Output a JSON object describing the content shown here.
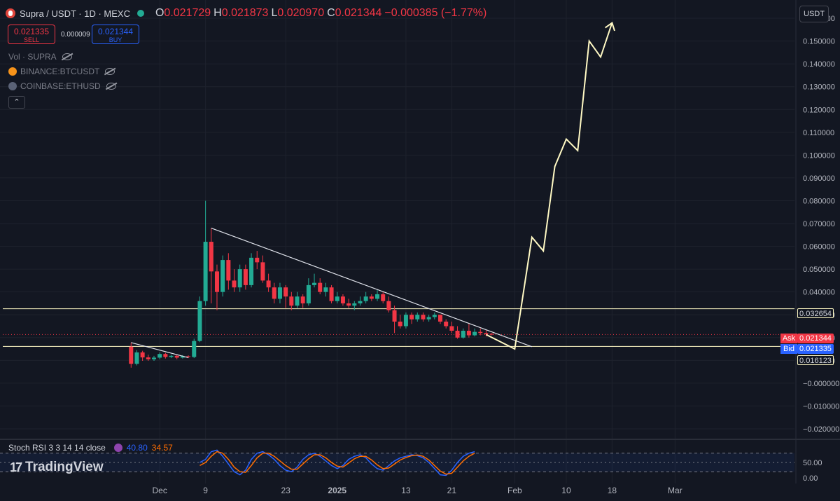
{
  "header": {
    "symbol": "Supra / USDT · 1D · MEXC",
    "open_label": "O",
    "open": "0.021729",
    "high_label": "H",
    "high": "0.021873",
    "low_label": "L",
    "low": "0.020970",
    "close_label": "C",
    "close": "0.021344",
    "change": "−0.000385 (−1.77%)"
  },
  "trade": {
    "sell_price": "0.021335",
    "sell_label": "SELL",
    "spread": "0.000009",
    "buy_price": "0.021344",
    "buy_label": "BUY"
  },
  "indicators": [
    {
      "label": "Vol · SUPRA"
    },
    {
      "label": "BINANCE:BTCUSDT"
    },
    {
      "label": "COINBASE:ETHUSD"
    }
  ],
  "collapse_glyph": "⌃",
  "currency_button": "USDT",
  "price_tags": {
    "upper_level": "0.032654",
    "ask_label": "Ask",
    "ask": "0.021344",
    "bid_label": "Bid",
    "bid": "0.021335",
    "lower_level": "0.016123"
  },
  "rsi": {
    "name": "Stoch RSI 3 3 14 14 close",
    "k": "40.80",
    "d": "34.57",
    "axis_ticks": [
      "50.00",
      "0.00"
    ]
  },
  "logo_text": "TradingView",
  "colors": {
    "background": "#131722",
    "up": "#22ab94",
    "down": "#f23645",
    "projection": "#fff9c4",
    "rsi_k": "#2962ff",
    "rsi_d": "#ff6d00"
  },
  "chart_data": {
    "type": "candlestick",
    "y_axis_ticks": [
      "0.160000",
      "0.150000",
      "0.140000",
      "0.130000",
      "0.120000",
      "0.110000",
      "0.100000",
      "0.090000",
      "0.080000",
      "0.070000",
      "0.060000",
      "0.050000",
      "0.040000",
      "0.030000",
      "0.020000",
      "0.010000",
      "−0.000000",
      "−0.010000",
      "−0.020000"
    ],
    "y_tick_values": [
      0.16,
      0.15,
      0.14,
      0.13,
      0.12,
      0.11,
      0.1,
      0.09,
      0.08,
      0.07,
      0.06,
      0.05,
      0.04,
      0.03,
      0.02,
      0.01,
      0.0,
      -0.01,
      -0.02
    ],
    "ylim": [
      -0.024,
      0.168
    ],
    "x_axis_ticks": [
      {
        "label": "Dec",
        "day": 1
      },
      {
        "label": "9",
        "day": 9
      },
      {
        "label": "23",
        "day": 23
      },
      {
        "label": "2025",
        "day": 32
      },
      {
        "label": "13",
        "day": 44
      },
      {
        "label": "21",
        "day": 52
      },
      {
        "label": "Feb",
        "day": 63
      },
      {
        "label": "10",
        "day": 72
      },
      {
        "label": "18",
        "day": 80
      },
      {
        "label": "Mar",
        "day": 91
      }
    ],
    "horizontal_levels": [
      0.032654,
      0.016123
    ],
    "current_price": 0.021344,
    "candles": [
      [
        -4,
        0.016,
        0.0085,
        0.0068,
        0.0178
      ],
      [
        -3,
        0.0085,
        0.0135,
        0.0078,
        0.0145
      ],
      [
        -2,
        0.0135,
        0.0113,
        0.0098,
        0.0142
      ],
      [
        -1,
        0.0113,
        0.0105,
        0.0098,
        0.0125
      ],
      [
        0,
        0.0105,
        0.0112,
        0.0098,
        0.012
      ],
      [
        1,
        0.0112,
        0.0128,
        0.0105,
        0.0135
      ],
      [
        2,
        0.0128,
        0.0115,
        0.0108,
        0.0133
      ],
      [
        3,
        0.0115,
        0.012,
        0.011,
        0.0125
      ],
      [
        4,
        0.012,
        0.0112,
        0.0105,
        0.0125
      ],
      [
        5,
        0.0112,
        0.0118,
        0.0108,
        0.0123
      ],
      [
        6,
        0.0118,
        0.0115,
        0.011,
        0.0122
      ],
      [
        7,
        0.0115,
        0.0185,
        0.011,
        0.0195
      ],
      [
        8,
        0.0185,
        0.036,
        0.018,
        0.038
      ],
      [
        9,
        0.036,
        0.062,
        0.034,
        0.08
      ],
      [
        10,
        0.062,
        0.049,
        0.035,
        0.068
      ],
      [
        11,
        0.049,
        0.04,
        0.032,
        0.052
      ],
      [
        12,
        0.04,
        0.054,
        0.038,
        0.056
      ],
      [
        13,
        0.054,
        0.045,
        0.041,
        0.057
      ],
      [
        14,
        0.045,
        0.042,
        0.04,
        0.05
      ],
      [
        15,
        0.042,
        0.05,
        0.04,
        0.052
      ],
      [
        16,
        0.05,
        0.043,
        0.041,
        0.052
      ],
      [
        17,
        0.043,
        0.055,
        0.042,
        0.057
      ],
      [
        18,
        0.055,
        0.053,
        0.05,
        0.058
      ],
      [
        19,
        0.053,
        0.045,
        0.044,
        0.056
      ],
      [
        20,
        0.045,
        0.042,
        0.04,
        0.048
      ],
      [
        21,
        0.042,
        0.037,
        0.035,
        0.044
      ],
      [
        22,
        0.037,
        0.042,
        0.035,
        0.044
      ],
      [
        23,
        0.042,
        0.038,
        0.033,
        0.043
      ],
      [
        24,
        0.038,
        0.034,
        0.032,
        0.04
      ],
      [
        25,
        0.034,
        0.038,
        0.033,
        0.04
      ],
      [
        26,
        0.038,
        0.035,
        0.033,
        0.039
      ],
      [
        27,
        0.035,
        0.043,
        0.034,
        0.046
      ],
      [
        28,
        0.043,
        0.044,
        0.042,
        0.048
      ],
      [
        29,
        0.044,
        0.04,
        0.039,
        0.046
      ],
      [
        30,
        0.04,
        0.042,
        0.038,
        0.044
      ],
      [
        31,
        0.042,
        0.036,
        0.035,
        0.043
      ],
      [
        32,
        0.036,
        0.038,
        0.035,
        0.04
      ],
      [
        33,
        0.038,
        0.035,
        0.034,
        0.039
      ],
      [
        34,
        0.035,
        0.034,
        0.033,
        0.037
      ],
      [
        35,
        0.034,
        0.035,
        0.032,
        0.036
      ],
      [
        36,
        0.035,
        0.036,
        0.034,
        0.038
      ],
      [
        37,
        0.036,
        0.038,
        0.035,
        0.04
      ],
      [
        38,
        0.038,
        0.037,
        0.036,
        0.039
      ],
      [
        39,
        0.037,
        0.039,
        0.036,
        0.041
      ],
      [
        40,
        0.039,
        0.036,
        0.035,
        0.04
      ],
      [
        41,
        0.036,
        0.032,
        0.031,
        0.038
      ],
      [
        42,
        0.032,
        0.027,
        0.022,
        0.034
      ],
      [
        43,
        0.027,
        0.025,
        0.024,
        0.03
      ],
      [
        44,
        0.025,
        0.03,
        0.024,
        0.031
      ],
      [
        45,
        0.03,
        0.028,
        0.026,
        0.031
      ],
      [
        46,
        0.028,
        0.03,
        0.027,
        0.031
      ],
      [
        47,
        0.03,
        0.028,
        0.027,
        0.031
      ],
      [
        48,
        0.028,
        0.029,
        0.027,
        0.03
      ],
      [
        49,
        0.029,
        0.03,
        0.028,
        0.031
      ],
      [
        50,
        0.03,
        0.027,
        0.026,
        0.03
      ],
      [
        51,
        0.027,
        0.025,
        0.024,
        0.028
      ],
      [
        52,
        0.025,
        0.023,
        0.022,
        0.027
      ],
      [
        53,
        0.023,
        0.02,
        0.0195,
        0.025
      ],
      [
        54,
        0.02,
        0.023,
        0.0195,
        0.024
      ],
      [
        55,
        0.023,
        0.021,
        0.02,
        0.026
      ],
      [
        56,
        0.021,
        0.0225,
        0.0205,
        0.024
      ],
      [
        57,
        0.0225,
        0.022,
        0.021,
        0.024
      ],
      [
        58,
        0.022,
        0.0215,
        0.0205,
        0.0235
      ],
      [
        59,
        0.0217,
        0.0213,
        0.021,
        0.0219
      ]
    ],
    "trendlines": [
      {
        "from": [
          -4,
          0.0178
        ],
        "to": [
          6,
          0.0112
        ]
      },
      {
        "from": [
          10,
          0.068
        ],
        "to": [
          66,
          0.016
        ]
      }
    ],
    "projection_path": [
      [
        58,
        0.0213
      ],
      [
        63,
        0.015
      ],
      [
        66,
        0.064
      ],
      [
        68,
        0.058
      ],
      [
        70,
        0.095
      ],
      [
        72,
        0.107
      ],
      [
        74,
        0.102
      ],
      [
        76,
        0.15
      ],
      [
        78,
        0.143
      ],
      [
        80,
        0.158
      ]
    ],
    "rsi_ylim": [
      0,
      100
    ],
    "rsi_k_values": [
      [
        8,
        50
      ],
      [
        9,
        60
      ],
      [
        10,
        85
      ],
      [
        11,
        90
      ],
      [
        12,
        70
      ],
      [
        13,
        45
      ],
      [
        14,
        20
      ],
      [
        15,
        10
      ],
      [
        16,
        25
      ],
      [
        17,
        60
      ],
      [
        18,
        80
      ],
      [
        19,
        85
      ],
      [
        20,
        75
      ],
      [
        21,
        60
      ],
      [
        22,
        40
      ],
      [
        23,
        25
      ],
      [
        24,
        20
      ],
      [
        25,
        35
      ],
      [
        26,
        60
      ],
      [
        27,
        75
      ],
      [
        28,
        80
      ],
      [
        29,
        70
      ],
      [
        30,
        55
      ],
      [
        31,
        40
      ],
      [
        32,
        30
      ],
      [
        33,
        40
      ],
      [
        34,
        60
      ],
      [
        35,
        70
      ],
      [
        36,
        75
      ],
      [
        37,
        65
      ],
      [
        38,
        45
      ],
      [
        39,
        30
      ],
      [
        40,
        25
      ],
      [
        41,
        40
      ],
      [
        42,
        55
      ],
      [
        43,
        65
      ],
      [
        44,
        70
      ],
      [
        45,
        75
      ],
      [
        46,
        72
      ],
      [
        47,
        65
      ],
      [
        48,
        50
      ],
      [
        49,
        30
      ],
      [
        50,
        10
      ],
      [
        51,
        8
      ],
      [
        52,
        25
      ],
      [
        53,
        50
      ],
      [
        54,
        70
      ],
      [
        55,
        80
      ],
      [
        56,
        85
      ]
    ],
    "rsi_d_values": [
      [
        8,
        40
      ],
      [
        9,
        50
      ],
      [
        10,
        70
      ],
      [
        11,
        85
      ],
      [
        12,
        80
      ],
      [
        13,
        60
      ],
      [
        14,
        35
      ],
      [
        15,
        20
      ],
      [
        16,
        18
      ],
      [
        17,
        40
      ],
      [
        18,
        65
      ],
      [
        19,
        80
      ],
      [
        20,
        80
      ],
      [
        21,
        70
      ],
      [
        22,
        55
      ],
      [
        23,
        40
      ],
      [
        24,
        28
      ],
      [
        25,
        28
      ],
      [
        26,
        45
      ],
      [
        27,
        62
      ],
      [
        28,
        75
      ],
      [
        29,
        75
      ],
      [
        30,
        65
      ],
      [
        31,
        50
      ],
      [
        32,
        38
      ],
      [
        33,
        35
      ],
      [
        34,
        48
      ],
      [
        35,
        62
      ],
      [
        36,
        70
      ],
      [
        37,
        70
      ],
      [
        38,
        58
      ],
      [
        39,
        42
      ],
      [
        40,
        30
      ],
      [
        41,
        32
      ],
      [
        42,
        45
      ],
      [
        43,
        58
      ],
      [
        44,
        66
      ],
      [
        45,
        72
      ],
      [
        46,
        74
      ],
      [
        47,
        70
      ],
      [
        48,
        58
      ],
      [
        49,
        40
      ],
      [
        50,
        22
      ],
      [
        51,
        12
      ],
      [
        52,
        15
      ],
      [
        53,
        35
      ],
      [
        54,
        55
      ],
      [
        55,
        70
      ],
      [
        56,
        80
      ]
    ]
  }
}
